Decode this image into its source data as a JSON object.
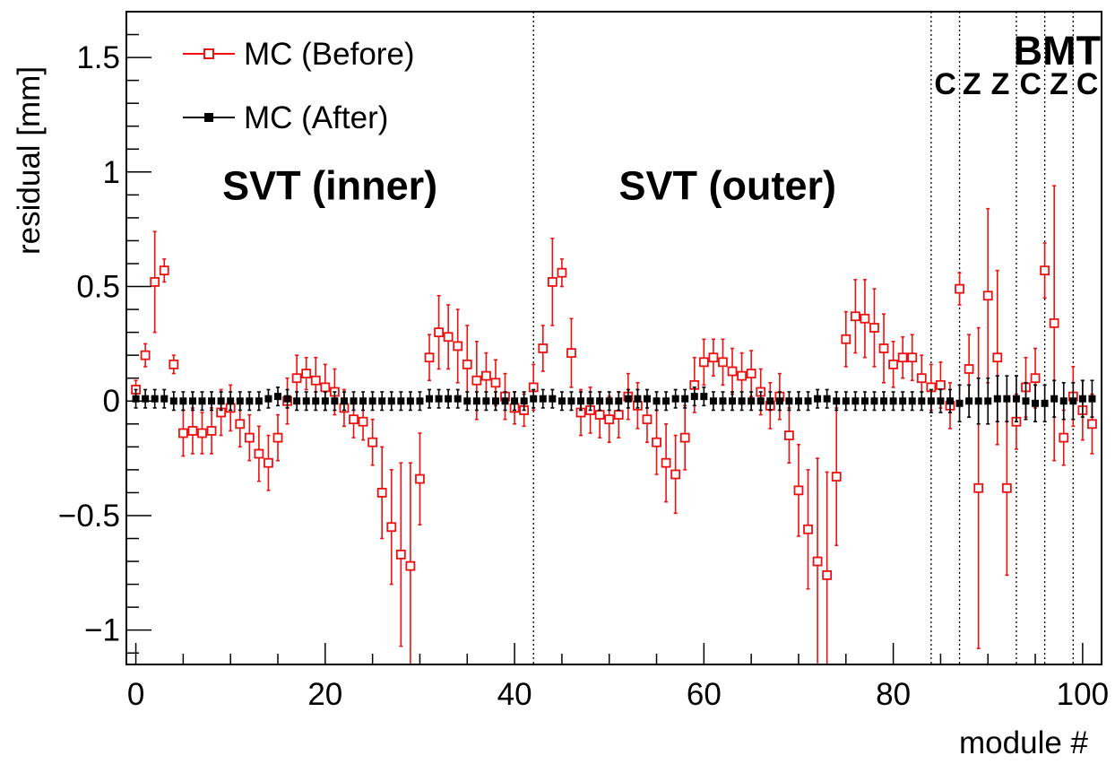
{
  "chart_data": {
    "type": "scatter",
    "title": "",
    "xlabel": "module #",
    "ylabel": "residual [mm]",
    "xlim": [
      -1,
      102
    ],
    "ylim": [
      -1.15,
      1.7
    ],
    "x_ticks": [
      0,
      20,
      40,
      60,
      80,
      100
    ],
    "x_tick_labels": [
      "0",
      "20",
      "40",
      "60",
      "80",
      "100"
    ],
    "y_ticks": [
      -1,
      -0.5,
      0,
      0.5,
      1,
      1.5
    ],
    "y_tick_labels": [
      "−1",
      "−0.5",
      "0",
      "0.5",
      "1",
      "1.5"
    ],
    "grid": false,
    "legend_position": "top-left",
    "separators": [
      42,
      84,
      87,
      93,
      96,
      99
    ],
    "region_labels": [
      {
        "id": "svt-inner",
        "text": "SVT (inner)",
        "x": 20.5,
        "y": 0.88
      },
      {
        "id": "svt-outer",
        "text": "SVT (outer)",
        "x": 62.5,
        "y": 0.88
      },
      {
        "id": "bmt",
        "text": "BMT",
        "x": 97.3,
        "y": 1.47
      }
    ],
    "bmt_layer_labels": [
      {
        "text": "C",
        "x": 85.5
      },
      {
        "text": "Z",
        "x": 88.3
      },
      {
        "text": "Z",
        "x": 91.3
      },
      {
        "text": "C",
        "x": 94.5
      },
      {
        "text": "Z",
        "x": 97.5
      },
      {
        "text": "C",
        "x": 100.5
      }
    ],
    "bmt_layer_label_y": 1.34,
    "series": [
      {
        "name": "MC (Before)",
        "color": "#ee1111",
        "marker": "open-square",
        "points": [
          [
            0,
            0.05,
            0.04
          ],
          [
            1,
            0.2,
            0.05
          ],
          [
            2,
            0.52,
            0.22
          ],
          [
            3,
            0.57,
            0.05
          ],
          [
            4,
            0.16,
            0.04
          ],
          [
            5,
            -0.14,
            0.1
          ],
          [
            6,
            -0.13,
            0.1
          ],
          [
            7,
            -0.14,
            0.09
          ],
          [
            8,
            -0.13,
            0.1
          ],
          [
            9,
            -0.05,
            0.1
          ],
          [
            10,
            -0.03,
            0.1
          ],
          [
            11,
            -0.1,
            0.1
          ],
          [
            12,
            -0.16,
            0.1
          ],
          [
            13,
            -0.23,
            0.12
          ],
          [
            14,
            -0.27,
            0.12
          ],
          [
            15,
            -0.16,
            0.1
          ],
          [
            16,
            0.0,
            0.1
          ],
          [
            17,
            0.1,
            0.1
          ],
          [
            18,
            0.12,
            0.07
          ],
          [
            19,
            0.09,
            0.1
          ],
          [
            20,
            0.06,
            0.1
          ],
          [
            21,
            0.04,
            0.1
          ],
          [
            22,
            -0.03,
            0.08
          ],
          [
            23,
            -0.08,
            0.08
          ],
          [
            24,
            -0.09,
            0.08
          ],
          [
            25,
            -0.18,
            0.1
          ],
          [
            26,
            -0.4,
            0.2
          ],
          [
            27,
            -0.55,
            0.25
          ],
          [
            28,
            -0.67,
            0.4
          ],
          [
            29,
            -0.72,
            0.45
          ],
          [
            30,
            -0.34,
            0.2
          ],
          [
            31,
            0.19,
            0.1
          ],
          [
            32,
            0.3,
            0.16
          ],
          [
            33,
            0.28,
            0.14
          ],
          [
            34,
            0.24,
            0.16
          ],
          [
            35,
            0.16,
            0.17
          ],
          [
            36,
            0.09,
            0.17
          ],
          [
            37,
            0.11,
            0.1
          ],
          [
            38,
            0.08,
            0.1
          ],
          [
            39,
            0.02,
            0.1
          ],
          [
            40,
            -0.03,
            0.07
          ],
          [
            41,
            -0.04,
            0.07
          ],
          [
            42,
            0.06,
            0.1
          ],
          [
            43,
            0.23,
            0.1
          ],
          [
            44,
            0.52,
            0.19
          ],
          [
            45,
            0.56,
            0.06
          ],
          [
            46,
            0.21,
            0.15
          ],
          [
            47,
            -0.05,
            0.1
          ],
          [
            48,
            -0.04,
            0.1
          ],
          [
            49,
            -0.06,
            0.1
          ],
          [
            50,
            -0.08,
            0.1
          ],
          [
            51,
            -0.06,
            0.1
          ],
          [
            52,
            0.02,
            0.1
          ],
          [
            53,
            -0.02,
            0.1
          ],
          [
            54,
            -0.08,
            0.1
          ],
          [
            55,
            -0.18,
            0.14
          ],
          [
            56,
            -0.27,
            0.17
          ],
          [
            57,
            -0.32,
            0.17
          ],
          [
            58,
            -0.16,
            0.14
          ],
          [
            59,
            0.07,
            0.12
          ],
          [
            60,
            0.17,
            0.1
          ],
          [
            61,
            0.19,
            0.08
          ],
          [
            62,
            0.17,
            0.1
          ],
          [
            63,
            0.13,
            0.1
          ],
          [
            64,
            0.11,
            0.1
          ],
          [
            65,
            0.12,
            0.1
          ],
          [
            66,
            0.04,
            0.1
          ],
          [
            67,
            -0.02,
            0.1
          ],
          [
            68,
            0.02,
            0.1
          ],
          [
            69,
            -0.15,
            0.12
          ],
          [
            70,
            -0.39,
            0.2
          ],
          [
            71,
            -0.56,
            0.26
          ],
          [
            72,
            -0.7,
            0.45
          ],
          [
            73,
            -0.76,
            0.45
          ],
          [
            74,
            -0.33,
            0.3
          ],
          [
            75,
            0.27,
            0.12
          ],
          [
            76,
            0.37,
            0.16
          ],
          [
            77,
            0.36,
            0.17
          ],
          [
            78,
            0.32,
            0.17
          ],
          [
            79,
            0.23,
            0.15
          ],
          [
            80,
            0.16,
            0.1
          ],
          [
            81,
            0.19,
            0.09
          ],
          [
            82,
            0.19,
            0.1
          ],
          [
            83,
            0.1,
            0.1
          ],
          [
            84,
            0.06,
            0.1
          ],
          [
            85,
            0.07,
            0.1
          ],
          [
            86,
            -0.02,
            0.1
          ],
          [
            87,
            0.49,
            0.07
          ],
          [
            88,
            0.14,
            0.15
          ],
          [
            89,
            -0.38,
            0.7
          ],
          [
            90,
            0.46,
            0.38
          ],
          [
            91,
            0.19,
            0.38
          ],
          [
            92,
            -0.38,
            0.38
          ],
          [
            93,
            -0.09,
            0.12
          ],
          [
            94,
            0.06,
            0.13
          ],
          [
            95,
            0.1,
            0.13
          ],
          [
            96,
            0.57,
            0.12
          ],
          [
            97,
            0.34,
            0.6
          ],
          [
            98,
            -0.16,
            0.12
          ],
          [
            99,
            0.02,
            0.13
          ],
          [
            100,
            -0.04,
            0.13
          ],
          [
            101,
            -0.1,
            0.13
          ]
        ]
      },
      {
        "name": "MC (After)",
        "color": "#000000",
        "marker": "filled-square",
        "points": [
          [
            0,
            0.01,
            0.04
          ],
          [
            1,
            0.01,
            0.04
          ],
          [
            2,
            0.01,
            0.04
          ],
          [
            3,
            0.01,
            0.04
          ],
          [
            4,
            0.0,
            0.04
          ],
          [
            5,
            0.0,
            0.04
          ],
          [
            6,
            0.0,
            0.04
          ],
          [
            7,
            0.0,
            0.04
          ],
          [
            8,
            0.0,
            0.04
          ],
          [
            9,
            0.0,
            0.04
          ],
          [
            10,
            0.0,
            0.04
          ],
          [
            11,
            0.0,
            0.04
          ],
          [
            12,
            0.0,
            0.04
          ],
          [
            13,
            0.0,
            0.04
          ],
          [
            14,
            0.01,
            0.04
          ],
          [
            15,
            0.02,
            0.04
          ],
          [
            16,
            0.01,
            0.04
          ],
          [
            17,
            0.0,
            0.04
          ],
          [
            18,
            0.0,
            0.04
          ],
          [
            19,
            0.0,
            0.04
          ],
          [
            20,
            0.0,
            0.04
          ],
          [
            21,
            0.0,
            0.04
          ],
          [
            22,
            0.0,
            0.04
          ],
          [
            23,
            0.0,
            0.04
          ],
          [
            24,
            0.0,
            0.04
          ],
          [
            25,
            0.0,
            0.04
          ],
          [
            26,
            0.0,
            0.04
          ],
          [
            27,
            0.0,
            0.04
          ],
          [
            28,
            0.0,
            0.04
          ],
          [
            29,
            0.0,
            0.04
          ],
          [
            30,
            0.0,
            0.04
          ],
          [
            31,
            0.01,
            0.04
          ],
          [
            32,
            0.01,
            0.04
          ],
          [
            33,
            0.01,
            0.04
          ],
          [
            34,
            0.01,
            0.04
          ],
          [
            35,
            0.0,
            0.04
          ],
          [
            36,
            0.0,
            0.04
          ],
          [
            37,
            0.0,
            0.04
          ],
          [
            38,
            0.0,
            0.04
          ],
          [
            39,
            0.0,
            0.04
          ],
          [
            40,
            0.0,
            0.04
          ],
          [
            41,
            0.0,
            0.04
          ],
          [
            42,
            0.01,
            0.04
          ],
          [
            43,
            0.01,
            0.04
          ],
          [
            44,
            0.01,
            0.04
          ],
          [
            45,
            0.0,
            0.04
          ],
          [
            46,
            0.0,
            0.04
          ],
          [
            47,
            0.0,
            0.04
          ],
          [
            48,
            0.0,
            0.04
          ],
          [
            49,
            0.0,
            0.04
          ],
          [
            50,
            0.0,
            0.04
          ],
          [
            51,
            0.0,
            0.04
          ],
          [
            52,
            0.01,
            0.04
          ],
          [
            53,
            0.01,
            0.04
          ],
          [
            54,
            0.01,
            0.04
          ],
          [
            55,
            0.0,
            0.04
          ],
          [
            56,
            0.0,
            0.04
          ],
          [
            57,
            0.01,
            0.04
          ],
          [
            58,
            0.01,
            0.04
          ],
          [
            59,
            0.02,
            0.04
          ],
          [
            60,
            0.02,
            0.04
          ],
          [
            61,
            0.0,
            0.04
          ],
          [
            62,
            0.0,
            0.04
          ],
          [
            63,
            0.0,
            0.04
          ],
          [
            64,
            0.0,
            0.04
          ],
          [
            65,
            0.0,
            0.04
          ],
          [
            66,
            0.0,
            0.04
          ],
          [
            67,
            0.0,
            0.04
          ],
          [
            68,
            0.0,
            0.04
          ],
          [
            69,
            0.0,
            0.04
          ],
          [
            70,
            0.0,
            0.04
          ],
          [
            71,
            0.0,
            0.04
          ],
          [
            72,
            0.01,
            0.04
          ],
          [
            73,
            0.01,
            0.04
          ],
          [
            74,
            0.0,
            0.04
          ],
          [
            75,
            0.0,
            0.04
          ],
          [
            76,
            0.0,
            0.04
          ],
          [
            77,
            0.0,
            0.04
          ],
          [
            78,
            0.0,
            0.04
          ],
          [
            79,
            0.0,
            0.04
          ],
          [
            80,
            0.0,
            0.04
          ],
          [
            81,
            0.0,
            0.04
          ],
          [
            82,
            0.0,
            0.04
          ],
          [
            83,
            0.0,
            0.04
          ],
          [
            84,
            0.0,
            0.05
          ],
          [
            85,
            0.0,
            0.05
          ],
          [
            86,
            0.0,
            0.05
          ],
          [
            87,
            -0.01,
            0.08
          ],
          [
            88,
            0.0,
            0.07
          ],
          [
            89,
            0.0,
            0.1
          ],
          [
            90,
            0.0,
            0.1
          ],
          [
            91,
            0.01,
            0.1
          ],
          [
            92,
            0.01,
            0.1
          ],
          [
            93,
            0.01,
            0.1
          ],
          [
            94,
            0.0,
            0.08
          ],
          [
            95,
            -0.01,
            0.08
          ],
          [
            96,
            -0.01,
            0.08
          ],
          [
            97,
            0.01,
            0.08
          ],
          [
            98,
            0.0,
            0.08
          ],
          [
            99,
            0.0,
            0.08
          ],
          [
            100,
            0.01,
            0.08
          ],
          [
            101,
            0.01,
            0.08
          ]
        ]
      }
    ]
  }
}
